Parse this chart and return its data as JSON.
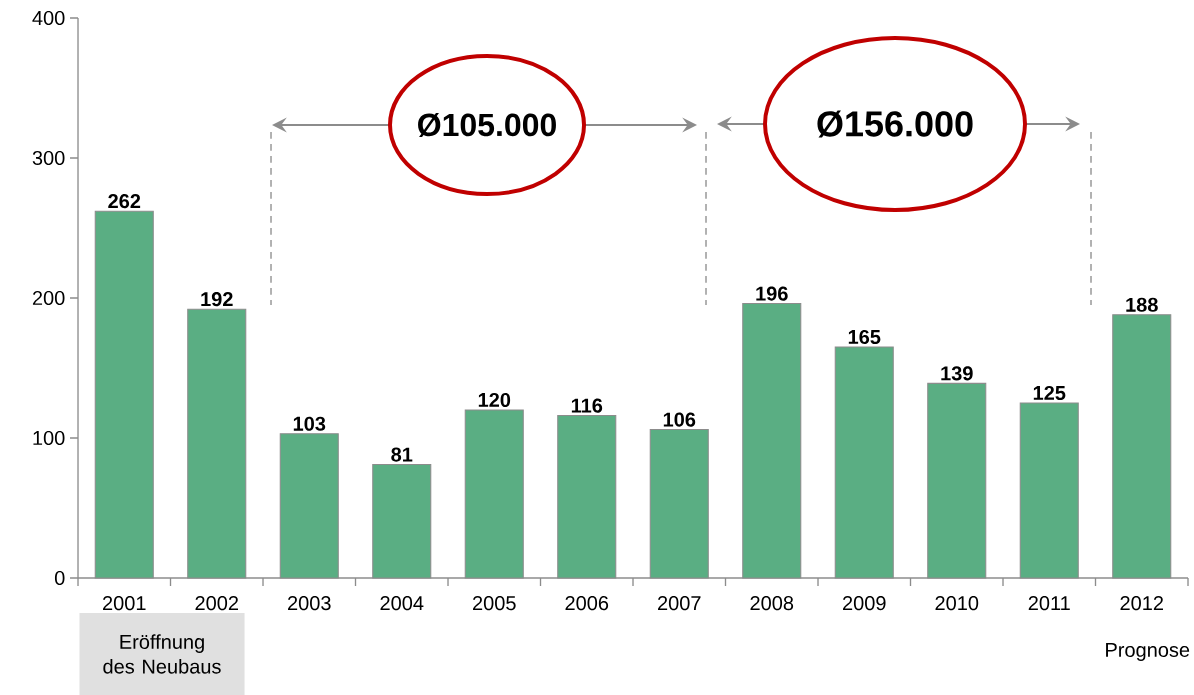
{
  "chart_data": {
    "type": "bar",
    "categories": [
      "2001",
      "2002",
      "2003",
      "2004",
      "2005",
      "2006",
      "2007",
      "2008",
      "2009",
      "2010",
      "2011",
      "2012"
    ],
    "values": [
      262,
      192,
      103,
      81,
      120,
      116,
      106,
      196,
      165,
      139,
      125,
      188
    ],
    "color": "#5aae83",
    "ylim": [
      0,
      400
    ],
    "yticks": [
      0,
      100,
      200,
      300,
      400
    ],
    "data_labels": true,
    "annotations": [
      "Ø105.000",
      "Ø156.000",
      "Eröffnung des Neubaus",
      "Prognose"
    ]
  }
}
